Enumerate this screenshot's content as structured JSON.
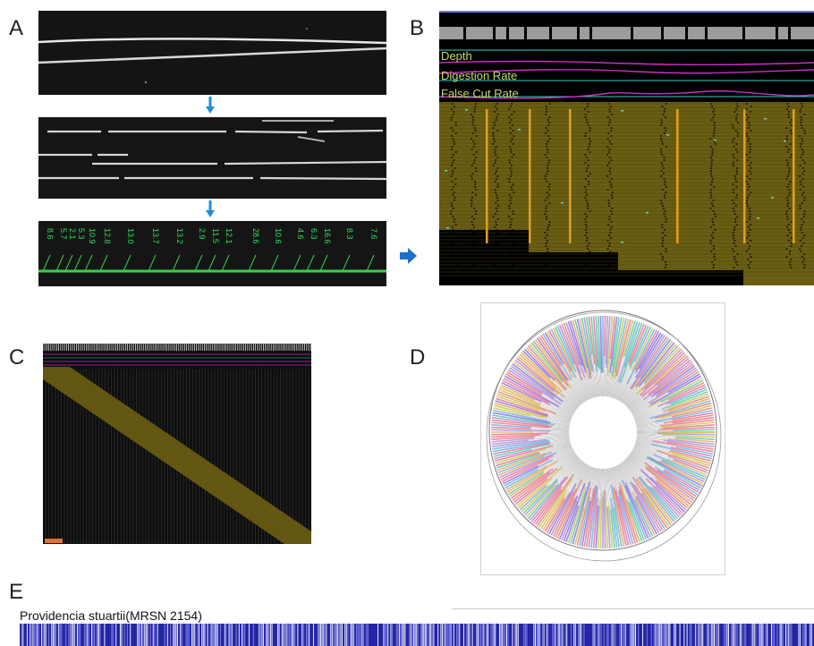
{
  "panels": {
    "a": {
      "letter": "A",
      "fragment_sizes": [
        "8.6",
        "5.7",
        "2.1",
        "5.3",
        "10.9",
        "12.8",
        "13.0",
        "13.7",
        "13.2",
        "2.9",
        "11.5",
        "12.1",
        "28.6",
        "10.6",
        "4.6",
        "6.3",
        "16.6",
        "8.3",
        "7.6"
      ]
    },
    "b": {
      "letter": "B",
      "track_labels": [
        "Depth",
        "Digestion Rate",
        "False Cut Rate"
      ]
    },
    "c": {
      "letter": "C"
    },
    "d": {
      "letter": "D"
    },
    "e": {
      "letter": "E",
      "species_label": "Providencia stuartii(MRSN 2154)"
    }
  },
  "colors": {
    "arrow": "#1f8fd6",
    "fragment_text": "#2ee05a",
    "track_text": "#c8d86a",
    "olive": "#6b5e12",
    "magenta": "#c630c6",
    "cyan": "#2fd0c8",
    "barcode": "#2a2ab0"
  }
}
